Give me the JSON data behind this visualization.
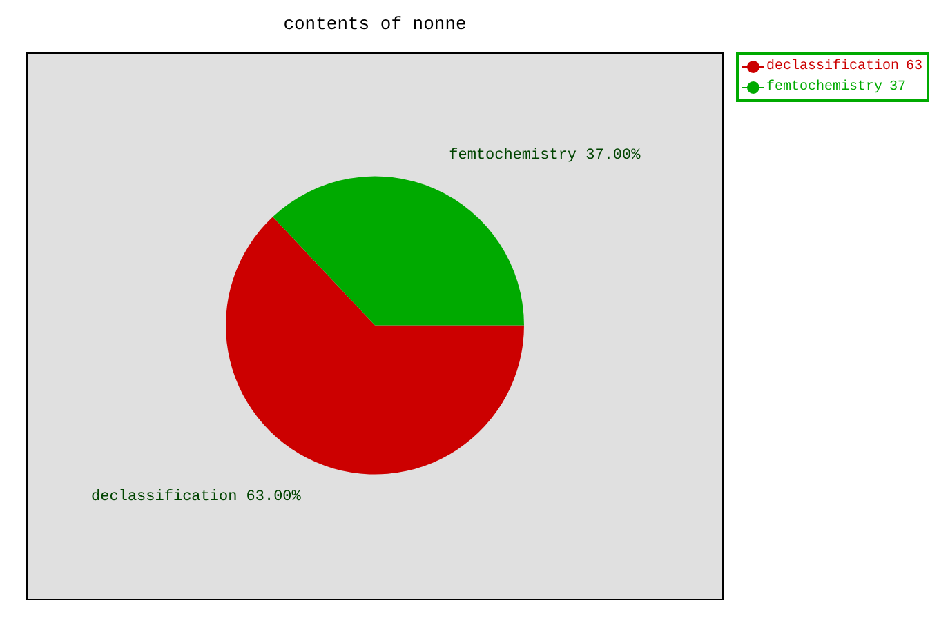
{
  "chart_data": {
    "type": "pie",
    "title": "contents of nonne",
    "categories": [
      "declassification",
      "femtochemistry"
    ],
    "values": [
      63,
      37
    ],
    "colors": [
      "#cc0000",
      "#00aa00"
    ],
    "value_labels": [
      "63.00%",
      "37.00%"
    ],
    "legend": "top right",
    "annotations": [
      "63",
      "37"
    ]
  }
}
